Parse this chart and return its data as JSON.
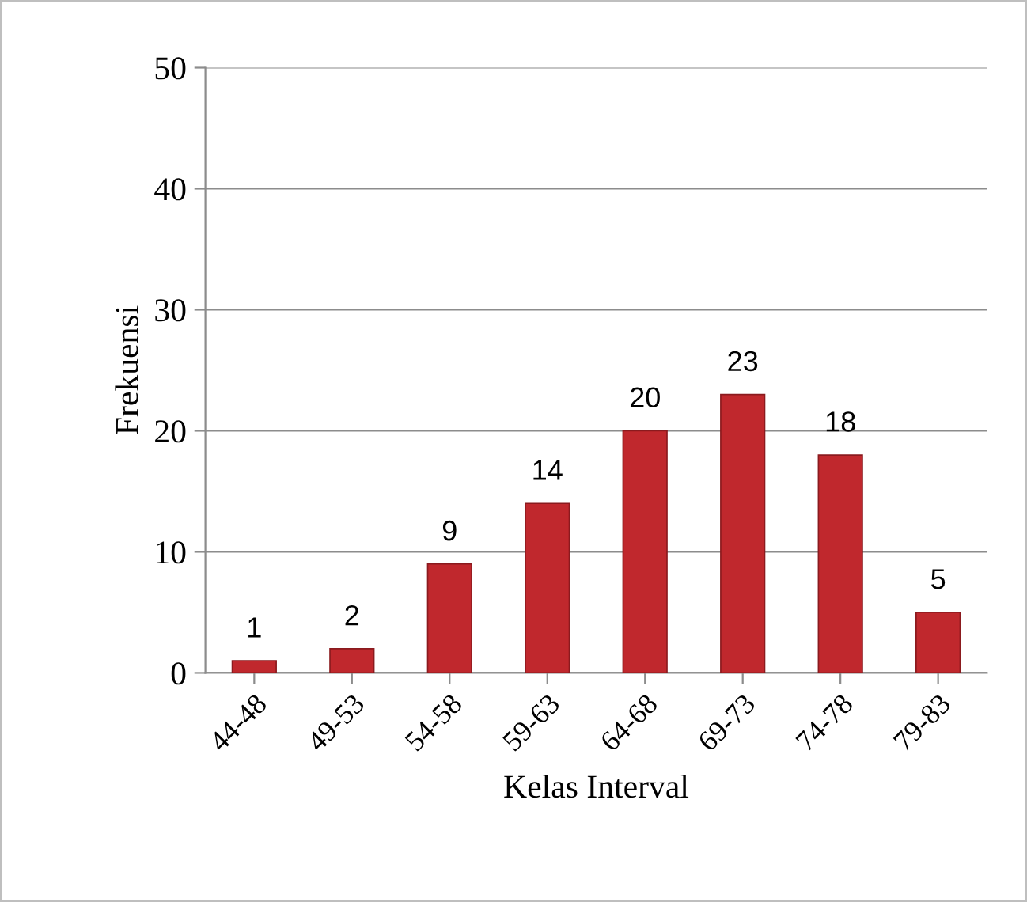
{
  "chart_data": {
    "type": "bar",
    "xlabel": "Kelas Interval",
    "ylabel": "Frekuensi",
    "categories": [
      "44-48",
      "49-53",
      "54-58",
      "59-63",
      "64-68",
      "69-73",
      "74-78",
      "79-83"
    ],
    "values": [
      1,
      2,
      9,
      14,
      20,
      23,
      18,
      5
    ],
    "color": "#c0282d",
    "ylim": [
      0,
      50
    ],
    "yticks": [
      0,
      10,
      20,
      30,
      40,
      50
    ],
    "grid": "y",
    "data_labels": true
  }
}
